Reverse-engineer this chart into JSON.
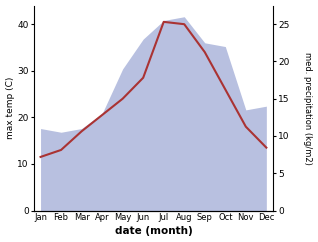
{
  "months": [
    "Jan",
    "Feb",
    "Mar",
    "Apr",
    "May",
    "Jun",
    "Jul",
    "Aug",
    "Sep",
    "Oct",
    "Nov",
    "Dec"
  ],
  "temp": [
    11.5,
    13.0,
    17.0,
    20.5,
    24.0,
    28.5,
    40.5,
    40.0,
    34.0,
    26.0,
    18.0,
    13.5
  ],
  "precip": [
    11.0,
    10.5,
    11.0,
    13.0,
    19.0,
    23.0,
    25.5,
    26.0,
    22.5,
    22.0,
    13.5,
    14.0
  ],
  "temp_color": "#aa3333",
  "precip_fill_color": "#b8c0e0",
  "ylabel_left": "max temp (C)",
  "ylabel_right": "med. precipitation (kg/m2)",
  "xlabel": "date (month)",
  "ylim_left": [
    0,
    44
  ],
  "ylim_right": [
    0,
    27.5
  ],
  "yticks_left": [
    0,
    10,
    20,
    30,
    40
  ],
  "yticks_right": [
    0,
    5,
    10,
    15,
    20,
    25
  ],
  "background_color": "#ffffff"
}
